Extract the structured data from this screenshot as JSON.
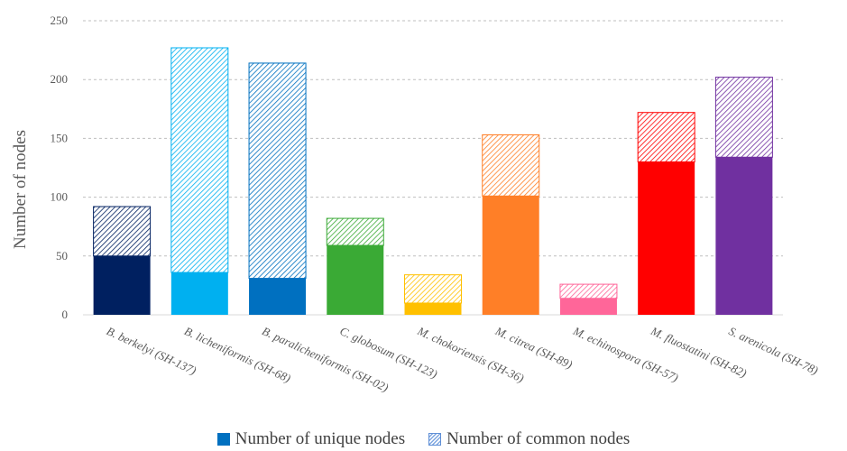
{
  "chart_data": {
    "type": "bar",
    "stacked": true,
    "ylabel": "Number of nodes",
    "xlabel": "",
    "ylim": [
      0,
      250
    ],
    "yticks": [
      "0",
      "50",
      "100",
      "150",
      "200",
      "250"
    ],
    "grid": true,
    "legend_position": "bottom",
    "categories": [
      "B. berkelyi (SH-137)",
      "B. licheniformis (SH-68)",
      "B. paralicheniformis (SH-02)",
      "C. globosum (SH-123)",
      "M. chokoriensis (SH-36)",
      "M. citrea (SH-89)",
      "M. echinospora (SH-57)",
      "M. fluostatini (SH-82)",
      "S. arenicola (SH-78)"
    ],
    "series": [
      {
        "name": "Number of unique nodes",
        "pattern": "solid",
        "values": [
          50,
          36,
          31,
          59,
          10,
          101,
          14,
          130,
          134
        ]
      },
      {
        "name": "Number of common nodes",
        "pattern": "hatched",
        "values": [
          42,
          191,
          183,
          23,
          24,
          52,
          12,
          42,
          68
        ]
      }
    ],
    "bar_colors": [
      "#002060",
      "#00b0f0",
      "#0070c0",
      "#3aaa35",
      "#ffc000",
      "#ff7f27",
      "#ff6699",
      "#ff0000",
      "#7030a0"
    ]
  }
}
